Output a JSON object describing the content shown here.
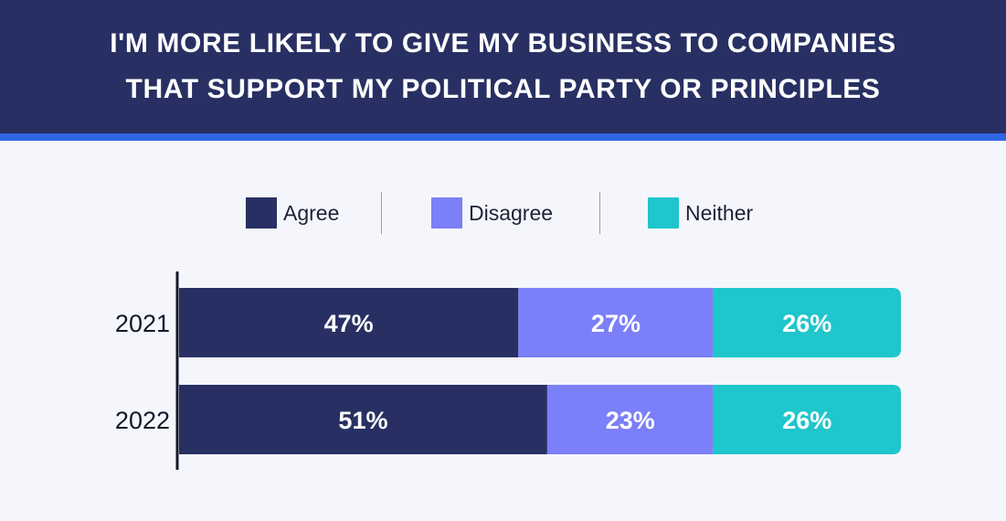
{
  "header": {
    "title_line1": "I'M MORE LIKELY TO GIVE MY BUSINESS TO COMPANIES",
    "title_line2": "THAT SUPPORT MY POLITICAL PARTY OR PRINCIPLES"
  },
  "colors": {
    "header_bg": "#283063",
    "header_rule": "#2f67e3",
    "background": "#f5f6fb"
  },
  "legend": [
    {
      "label": "Agree",
      "color": "#283063"
    },
    {
      "label": "Disagree",
      "color": "#7b7ff8"
    },
    {
      "label": "Neither",
      "color": "#1fc6cc"
    }
  ],
  "chart_data": {
    "type": "bar",
    "orientation": "horizontal",
    "stacked": true,
    "categories": [
      "2021",
      "2022"
    ],
    "series": [
      {
        "name": "Agree",
        "values": [
          47,
          51
        ],
        "labels": [
          "47%",
          "51%"
        ]
      },
      {
        "name": "Disagree",
        "values": [
          27,
          23
        ],
        "labels": [
          "27%",
          "23%"
        ]
      },
      {
        "name": "Neither",
        "values": [
          26,
          26
        ],
        "labels": [
          "26%",
          "26%"
        ]
      }
    ],
    "title": "I'M MORE LIKELY TO GIVE MY BUSINESS TO COMPANIES THAT SUPPORT MY POLITICAL PARTY OR PRINCIPLES",
    "xlim": [
      0,
      100
    ],
    "grid": false,
    "legend_position": "top"
  }
}
